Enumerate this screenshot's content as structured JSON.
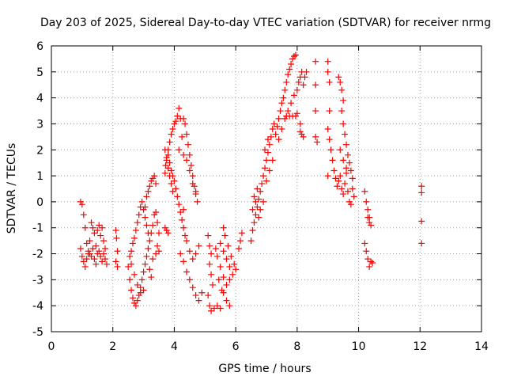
{
  "chart_data": {
    "type": "scatter",
    "title": "Day 203 of 2025, Sidereal Day-to-day VTEC variation (SDTVAR) for receiver nrmg",
    "xlabel": "GPS time / hours",
    "ylabel": "SDTVAR / TECUs",
    "xlim": [
      0,
      14
    ],
    "ylim": [
      -5,
      6
    ],
    "x_ticks": [
      "0",
      "2",
      "4",
      "6",
      "8",
      "10",
      "12",
      "14"
    ],
    "y_ticks": [
      "-5",
      "-4",
      "-3",
      "-2",
      "-1",
      "0",
      "1",
      "2",
      "3",
      "4",
      "5",
      "6"
    ],
    "grid": true,
    "marker": "+",
    "colors": {
      "series": "#ff0000",
      "grid": "#a0a0a0",
      "axis": "#000000"
    },
    "series": [
      {
        "name": "nrmg",
        "points": [
          [
            0.95,
            0.0
          ],
          [
            1.0,
            -0.1
          ],
          [
            1.05,
            -0.5
          ],
          [
            1.1,
            -1.0
          ],
          [
            1.15,
            -1.6
          ],
          [
            1.2,
            -2.0
          ],
          [
            0.95,
            -1.8
          ],
          [
            1.0,
            -2.1
          ],
          [
            1.05,
            -2.3
          ],
          [
            1.1,
            -2.5
          ],
          [
            1.15,
            -2.2
          ],
          [
            1.2,
            -1.9
          ],
          [
            1.25,
            -2.0
          ],
          [
            1.3,
            -2.1
          ],
          [
            1.35,
            -1.8
          ],
          [
            1.4,
            -2.2
          ],
          [
            1.45,
            -2.4
          ],
          [
            1.5,
            -2.0
          ],
          [
            1.3,
            -0.8
          ],
          [
            1.35,
            -1.0
          ],
          [
            1.4,
            -1.2
          ],
          [
            1.5,
            -1.1
          ],
          [
            1.55,
            -0.9
          ],
          [
            1.6,
            -1.3
          ],
          [
            1.65,
            -1.0
          ],
          [
            1.7,
            -1.5
          ],
          [
            1.55,
            -1.9
          ],
          [
            1.6,
            -2.1
          ],
          [
            1.65,
            -2.3
          ],
          [
            1.7,
            -2.0
          ],
          [
            1.75,
            -2.2
          ],
          [
            1.8,
            -2.4
          ],
          [
            1.25,
            -1.5
          ],
          [
            1.45,
            -1.7
          ],
          [
            1.75,
            -1.8
          ],
          [
            2.1,
            -1.1
          ],
          [
            2.12,
            -1.4
          ],
          [
            2.15,
            -1.9
          ],
          [
            2.1,
            -2.3
          ],
          [
            2.15,
            -2.5
          ],
          [
            2.5,
            -2.5
          ],
          [
            2.55,
            -3.0
          ],
          [
            2.6,
            -3.4
          ],
          [
            2.65,
            -3.7
          ],
          [
            2.7,
            -3.9
          ],
          [
            2.75,
            -4.0
          ],
          [
            2.8,
            -3.8
          ],
          [
            2.85,
            -3.6
          ],
          [
            2.9,
            -3.3
          ],
          [
            2.95,
            -3.0
          ],
          [
            3.0,
            -2.7
          ],
          [
            3.05,
            -2.4
          ],
          [
            3.1,
            -2.1
          ],
          [
            3.15,
            -1.8
          ],
          [
            3.2,
            -1.5
          ],
          [
            3.25,
            -1.2
          ],
          [
            3.3,
            -0.9
          ],
          [
            3.35,
            -0.5
          ],
          [
            2.6,
            -1.9
          ],
          [
            2.65,
            -1.6
          ],
          [
            2.7,
            -1.4
          ],
          [
            2.75,
            -1.1
          ],
          [
            2.8,
            -0.8
          ],
          [
            2.85,
            -0.5
          ],
          [
            2.9,
            -0.2
          ],
          [
            2.95,
            0.0
          ],
          [
            3.0,
            -0.3
          ],
          [
            3.05,
            -0.6
          ],
          [
            3.1,
            -0.9
          ],
          [
            3.15,
            -1.2
          ],
          [
            2.55,
            -2.1
          ],
          [
            2.6,
            -2.4
          ],
          [
            2.7,
            -2.8
          ],
          [
            2.8,
            -3.2
          ],
          [
            2.9,
            -3.5
          ],
          [
            3.0,
            -3.4
          ],
          [
            3.05,
            -0.2
          ],
          [
            3.1,
            0.2
          ],
          [
            3.15,
            0.4
          ],
          [
            3.2,
            0.6
          ],
          [
            3.25,
            0.8
          ],
          [
            3.3,
            0.9
          ],
          [
            3.35,
            1.0
          ],
          [
            3.4,
            0.7
          ],
          [
            3.4,
            -0.4
          ],
          [
            3.45,
            -0.8
          ],
          [
            3.5,
            -1.2
          ],
          [
            3.45,
            -1.7
          ],
          [
            3.3,
            -2.2
          ],
          [
            3.4,
            -2.0
          ],
          [
            3.5,
            -1.9
          ],
          [
            3.2,
            -2.6
          ],
          [
            3.25,
            -2.9
          ],
          [
            3.7,
            -1.0
          ],
          [
            3.75,
            -1.1
          ],
          [
            3.8,
            -1.2
          ],
          [
            3.7,
            1.1
          ],
          [
            3.72,
            1.4
          ],
          [
            3.75,
            1.7
          ],
          [
            3.8,
            2.0
          ],
          [
            3.85,
            2.3
          ],
          [
            3.9,
            2.6
          ],
          [
            3.95,
            2.8
          ],
          [
            4.0,
            3.0
          ],
          [
            4.05,
            3.1
          ],
          [
            4.1,
            3.3
          ],
          [
            4.15,
            3.6
          ],
          [
            4.2,
            3.2
          ],
          [
            3.7,
            2.0
          ],
          [
            3.75,
            1.6
          ],
          [
            3.8,
            1.3
          ],
          [
            3.85,
            1.0
          ],
          [
            3.9,
            0.7
          ],
          [
            3.95,
            0.4
          ],
          [
            3.8,
            1.8
          ],
          [
            3.85,
            1.5
          ],
          [
            3.9,
            1.2
          ],
          [
            3.95,
            1.0
          ],
          [
            4.0,
            0.8
          ],
          [
            4.05,
            0.5
          ],
          [
            4.1,
            0.2
          ],
          [
            4.15,
            -0.1
          ],
          [
            4.2,
            -0.4
          ],
          [
            4.25,
            -0.7
          ],
          [
            4.3,
            -1.0
          ],
          [
            4.35,
            -1.3
          ],
          [
            4.3,
            3.2
          ],
          [
            4.35,
            3.0
          ],
          [
            4.4,
            2.6
          ],
          [
            4.45,
            2.2
          ],
          [
            4.5,
            1.8
          ],
          [
            4.55,
            1.4
          ],
          [
            4.6,
            1.0
          ],
          [
            4.65,
            0.6
          ],
          [
            4.7,
            0.3
          ],
          [
            4.75,
            0.0
          ],
          [
            4.3,
            1.8
          ],
          [
            4.4,
            1.6
          ],
          [
            4.5,
            1.2
          ],
          [
            4.6,
            0.7
          ],
          [
            4.7,
            0.4
          ],
          [
            4.25,
            2.5
          ],
          [
            4.15,
            2.0
          ],
          [
            4.2,
            -2.0
          ],
          [
            4.3,
            -2.3
          ],
          [
            4.4,
            -2.7
          ],
          [
            4.5,
            -3.0
          ],
          [
            4.6,
            -3.3
          ],
          [
            4.7,
            -3.6
          ],
          [
            4.8,
            -3.8
          ],
          [
            4.9,
            -3.5
          ],
          [
            4.4,
            -1.5
          ],
          [
            4.5,
            -1.9
          ],
          [
            4.6,
            -2.2
          ],
          [
            4.7,
            -2.0
          ],
          [
            4.8,
            -1.7
          ],
          [
            4.3,
            -0.3
          ],
          [
            5.1,
            -1.3
          ],
          [
            5.15,
            -1.7
          ],
          [
            5.2,
            -2.0
          ],
          [
            5.15,
            -2.4
          ],
          [
            5.2,
            -2.8
          ],
          [
            5.25,
            -3.2
          ],
          [
            5.1,
            -3.6
          ],
          [
            5.15,
            -4.0
          ],
          [
            5.2,
            -4.2
          ],
          [
            5.3,
            -4.1
          ],
          [
            5.4,
            -4.0
          ],
          [
            5.5,
            -4.1
          ],
          [
            5.35,
            -1.8
          ],
          [
            5.4,
            -2.1
          ],
          [
            5.5,
            -2.5
          ],
          [
            5.6,
            -2.9
          ],
          [
            5.7,
            -3.2
          ],
          [
            5.8,
            -3.0
          ],
          [
            5.5,
            -1.6
          ],
          [
            5.6,
            -1.9
          ],
          [
            5.7,
            -2.2
          ],
          [
            5.8,
            -2.5
          ],
          [
            5.9,
            -2.8
          ],
          [
            6.0,
            -2.6
          ],
          [
            5.6,
            -1.0
          ],
          [
            5.65,
            -1.3
          ],
          [
            5.75,
            -1.7
          ],
          [
            5.85,
            -2.1
          ],
          [
            5.95,
            -2.4
          ],
          [
            5.6,
            -3.5
          ],
          [
            5.7,
            -3.8
          ],
          [
            5.8,
            -4.0
          ],
          [
            5.45,
            -3.0
          ],
          [
            5.55,
            -3.4
          ],
          [
            6.1,
            -1.8
          ],
          [
            6.15,
            -1.5
          ],
          [
            6.2,
            -1.2
          ],
          [
            6.5,
            -1.5
          ],
          [
            6.55,
            -1.1
          ],
          [
            6.6,
            -0.8
          ],
          [
            6.65,
            -0.5
          ],
          [
            6.7,
            -0.2
          ],
          [
            6.75,
            0.1
          ],
          [
            6.8,
            0.4
          ],
          [
            6.85,
            0.7
          ],
          [
            6.9,
            1.0
          ],
          [
            6.95,
            1.3
          ],
          [
            7.0,
            1.6
          ],
          [
            7.05,
            1.9
          ],
          [
            7.1,
            2.2
          ],
          [
            7.15,
            2.5
          ],
          [
            7.2,
            2.8
          ],
          [
            7.25,
            3.0
          ],
          [
            6.6,
            0.2
          ],
          [
            6.7,
            0.5
          ],
          [
            6.8,
            -0.3
          ],
          [
            6.9,
            0.0
          ],
          [
            7.0,
            0.8
          ],
          [
            7.1,
            1.2
          ],
          [
            7.2,
            1.6
          ],
          [
            6.55,
            -0.3
          ],
          [
            6.65,
            0.0
          ],
          [
            6.75,
            -0.6
          ],
          [
            6.95,
            2.0
          ],
          [
            7.05,
            2.4
          ],
          [
            7.3,
            2.6
          ],
          [
            7.35,
            2.9
          ],
          [
            7.4,
            3.2
          ],
          [
            7.45,
            3.5
          ],
          [
            7.5,
            3.8
          ],
          [
            7.55,
            4.0
          ],
          [
            7.6,
            4.3
          ],
          [
            7.65,
            4.6
          ],
          [
            7.7,
            4.9
          ],
          [
            7.75,
            5.1
          ],
          [
            7.8,
            5.3
          ],
          [
            7.85,
            5.5
          ],
          [
            7.9,
            5.6
          ],
          [
            7.95,
            5.65
          ],
          [
            7.4,
            2.4
          ],
          [
            7.5,
            2.8
          ],
          [
            7.6,
            3.2
          ],
          [
            7.7,
            3.5
          ],
          [
            7.8,
            3.8
          ],
          [
            7.9,
            4.1
          ],
          [
            8.0,
            4.3
          ],
          [
            7.65,
            3.3
          ],
          [
            7.75,
            3.3
          ],
          [
            7.85,
            3.3
          ],
          [
            7.95,
            3.3
          ],
          [
            8.0,
            3.4
          ],
          [
            8.05,
            4.6
          ],
          [
            8.1,
            4.8
          ],
          [
            8.15,
            5.0
          ],
          [
            8.2,
            4.5
          ],
          [
            8.25,
            4.8
          ],
          [
            8.3,
            5.0
          ],
          [
            8.1,
            2.7
          ],
          [
            8.15,
            2.6
          ],
          [
            8.2,
            2.5
          ],
          [
            8.1,
            3.0
          ],
          [
            8.6,
            5.4
          ],
          [
            8.6,
            4.5
          ],
          [
            8.6,
            3.5
          ],
          [
            8.6,
            2.5
          ],
          [
            8.65,
            2.3
          ],
          [
            9.0,
            5.4
          ],
          [
            9.0,
            5.0
          ],
          [
            9.05,
            4.6
          ],
          [
            9.05,
            3.5
          ],
          [
            9.0,
            2.8
          ],
          [
            9.05,
            2.4
          ],
          [
            9.0,
            1.0
          ],
          [
            9.1,
            2.0
          ],
          [
            9.15,
            1.6
          ],
          [
            9.2,
            1.2
          ],
          [
            9.25,
            0.9
          ],
          [
            9.3,
            0.6
          ],
          [
            9.35,
            0.8
          ],
          [
            9.4,
            1.0
          ],
          [
            9.45,
            0.5
          ],
          [
            9.5,
            0.3
          ],
          [
            9.55,
            0.7
          ],
          [
            9.6,
            1.1
          ],
          [
            9.65,
            0.4
          ],
          [
            9.7,
            0.0
          ],
          [
            9.75,
            -0.1
          ],
          [
            9.35,
            4.8
          ],
          [
            9.4,
            4.6
          ],
          [
            9.45,
            4.3
          ],
          [
            9.5,
            3.9
          ],
          [
            9.45,
            3.5
          ],
          [
            9.5,
            3.0
          ],
          [
            9.55,
            2.6
          ],
          [
            9.6,
            2.2
          ],
          [
            9.65,
            1.8
          ],
          [
            9.7,
            1.5
          ],
          [
            9.75,
            1.2
          ],
          [
            9.8,
            0.9
          ],
          [
            9.8,
            0.5
          ],
          [
            9.85,
            0.2
          ],
          [
            9.4,
            2.0
          ],
          [
            9.5,
            1.6
          ],
          [
            9.6,
            1.3
          ],
          [
            10.2,
            0.4
          ],
          [
            10.25,
            0.0
          ],
          [
            10.3,
            -0.3
          ],
          [
            10.35,
            -0.6
          ],
          [
            10.4,
            -0.9
          ],
          [
            10.3,
            -0.6
          ],
          [
            10.35,
            -0.8
          ],
          [
            10.2,
            -1.6
          ],
          [
            10.25,
            -1.9
          ],
          [
            10.3,
            -2.2
          ],
          [
            10.35,
            -2.5
          ],
          [
            10.4,
            -2.3
          ],
          [
            10.45,
            -2.35
          ],
          [
            12.05,
            0.6
          ],
          [
            12.05,
            0.35
          ],
          [
            12.05,
            -0.75
          ],
          [
            12.05,
            -1.6
          ]
        ]
      }
    ]
  }
}
